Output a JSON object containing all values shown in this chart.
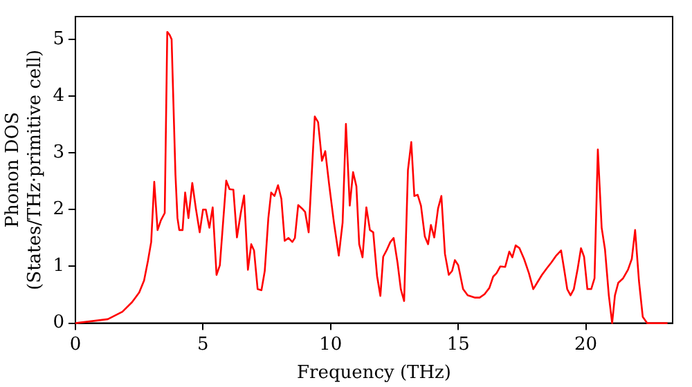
{
  "chart_data": {
    "type": "line",
    "xlabel": "Frequency (THz)",
    "ylabel": "Phonon DOS\n(States/THz·primitive cell)",
    "xlim": [
      0,
      23.4
    ],
    "ylim": [
      0,
      5.4
    ],
    "xticks": [
      0,
      5,
      10,
      15,
      20
    ],
    "yticks": [
      0,
      1,
      2,
      3,
      4,
      5
    ],
    "grid": false,
    "legend": false,
    "marker": "none",
    "line_style": "solid",
    "series": [
      {
        "color": "#ff0000",
        "x": [
          0,
          1.27,
          1.84,
          2.22,
          2.5,
          2.69,
          2.84,
          2.97,
          3.09,
          3.22,
          3.35,
          3.5,
          3.6,
          3.69,
          3.77,
          3.92,
          4.0,
          4.07,
          4.2,
          4.3,
          4.43,
          4.58,
          4.72,
          4.87,
          5.0,
          5.11,
          5.25,
          5.38,
          5.53,
          5.66,
          5.91,
          6.04,
          6.19,
          6.33,
          6.48,
          6.61,
          6.76,
          6.89,
          7.0,
          7.14,
          7.29,
          7.42,
          7.56,
          7.67,
          7.8,
          7.94,
          8.07,
          8.2,
          8.35,
          8.5,
          8.6,
          8.73,
          8.88,
          9.0,
          9.14,
          9.38,
          9.51,
          9.66,
          9.79,
          9.94,
          10.13,
          10.32,
          10.47,
          10.6,
          10.75,
          10.88,
          11.01,
          11.12,
          11.25,
          11.4,
          11.54,
          11.67,
          11.82,
          11.95,
          12.06,
          12.19,
          12.34,
          12.47,
          12.62,
          12.75,
          12.88,
          13.03,
          13.16,
          13.28,
          13.41,
          13.54,
          13.69,
          13.82,
          13.93,
          14.06,
          14.21,
          14.34,
          14.48,
          14.63,
          14.76,
          14.87,
          15.0,
          15.19,
          15.37,
          15.66,
          15.84,
          16.03,
          16.22,
          16.37,
          16.5,
          16.65,
          16.84,
          17.0,
          17.12,
          17.25,
          17.4,
          17.58,
          17.77,
          17.94,
          18.09,
          18.28,
          18.46,
          18.65,
          18.84,
          19.03,
          19.16,
          19.27,
          19.4,
          19.53,
          19.68,
          19.81,
          19.93,
          20.06,
          20.21,
          20.34,
          20.47,
          20.62,
          20.75,
          20.9,
          21.03,
          21.14,
          21.27,
          21.46,
          21.65,
          21.8,
          21.93,
          22.08,
          22.23,
          22.4,
          23.2
        ],
        "values": [
          0,
          0.07,
          0.2,
          0.37,
          0.54,
          0.75,
          1.09,
          1.43,
          2.49,
          1.64,
          1.81,
          1.94,
          5.13,
          5.08,
          5.0,
          2.62,
          1.85,
          1.64,
          1.64,
          2.3,
          1.85,
          2.47,
          2.02,
          1.6,
          2.0,
          2.0,
          1.68,
          2.04,
          0.85,
          1.02,
          2.51,
          2.36,
          2.35,
          1.51,
          1.94,
          2.25,
          0.94,
          1.39,
          1.28,
          0.6,
          0.58,
          0.92,
          1.85,
          2.3,
          2.24,
          2.43,
          2.19,
          1.45,
          1.5,
          1.43,
          1.5,
          2.08,
          2.02,
          1.96,
          1.6,
          3.64,
          3.54,
          2.86,
          3.03,
          2.45,
          1.77,
          1.19,
          1.77,
          3.51,
          2.07,
          2.66,
          2.41,
          1.39,
          1.16,
          2.04,
          1.64,
          1.6,
          0.83,
          0.48,
          1.17,
          1.28,
          1.43,
          1.5,
          1.07,
          0.6,
          0.39,
          2.7,
          3.19,
          2.24,
          2.26,
          2.07,
          1.53,
          1.39,
          1.73,
          1.51,
          2.02,
          2.24,
          1.22,
          0.85,
          0.92,
          1.11,
          1.02,
          0.6,
          0.49,
          0.45,
          0.45,
          0.51,
          0.62,
          0.82,
          0.88,
          1.0,
          0.99,
          1.26,
          1.16,
          1.37,
          1.32,
          1.13,
          0.88,
          0.6,
          0.71,
          0.85,
          0.96,
          1.07,
          1.19,
          1.28,
          0.92,
          0.6,
          0.49,
          0.6,
          0.96,
          1.32,
          1.17,
          0.6,
          0.6,
          0.79,
          3.06,
          1.68,
          1.3,
          0.49,
          0,
          0.49,
          0.71,
          0.79,
          0.94,
          1.13,
          1.64,
          0.75,
          0.11,
          0,
          0
        ]
      }
    ]
  }
}
